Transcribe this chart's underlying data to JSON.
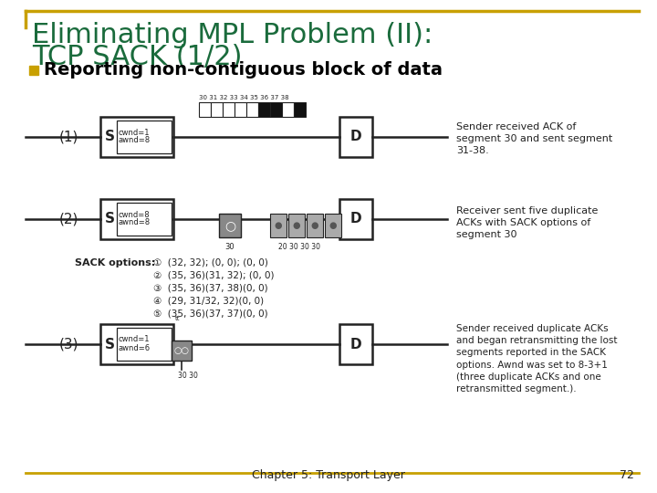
{
  "title_line1": "Eliminating MPL Problem (II):",
  "title_line2": "TCP SACK (1/2)",
  "title_color": "#1a6b3c",
  "title_fontsize": 22,
  "bullet_text": "Reporting non-contiguous block of data",
  "bullet_color": "#c8a000",
  "bullet_fontsize": 14,
  "bg_color": "#ffffff",
  "border_color": "#c8a000",
  "footer_text": "Chapter 5: Transport Layer",
  "footer_page": "72",
  "footer_fontsize": 9,
  "desc_1": "Sender received ACK of\nsegment 30 and sent segment\n31-38.",
  "desc_2": "Receiver sent five duplicate\nACKs with SACK options of\nsegment 30",
  "desc_3": "Sender received duplicate ACKs\nand began retransmitting the lost\nsegments reported in the SACK\noptions. Awnd was set to 8-3+1\n(three duplicate ACKs and one\nretransmitted segment.).",
  "sack_options_label": "SACK options:",
  "sack_options": [
    "①  (32, 32); (0, 0); (0, 0)",
    "②  (35, 36)(31, 32); (0, 0)",
    "③  (35, 36)(37, 38)(0, 0)",
    "④  (29, 31/32, 32)(0, 0)",
    "⑤  (35, 36)(37, 37)(0, 0)"
  ],
  "seg_labels": [
    "30",
    "31",
    "32",
    "33",
    "34",
    "35",
    "36",
    "37",
    "38"
  ],
  "seg_black": [
    "35",
    "36",
    "38"
  ],
  "diagram_color": "#222222"
}
